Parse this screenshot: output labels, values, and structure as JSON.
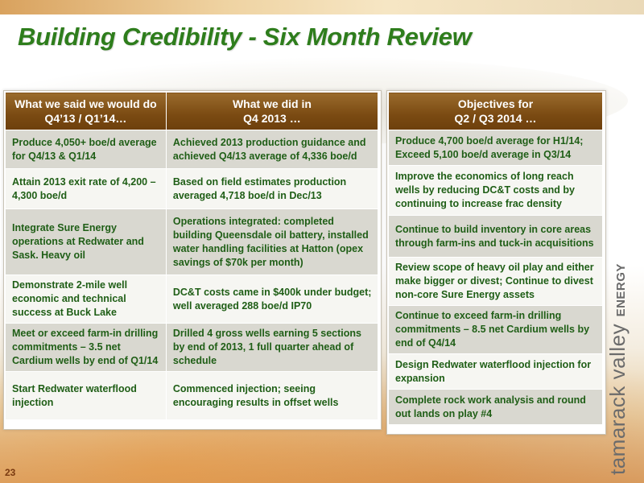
{
  "slide": {
    "title": "Building Credibility - Six Month Review",
    "page_number": "23",
    "brand": {
      "name": "tamarack valley",
      "suffix": "ENERGY"
    }
  },
  "left_table": {
    "headers": [
      {
        "line1": "What we said we would do",
        "line2": "Q4’13 / Q1’14…"
      },
      {
        "line1": "What we did in",
        "line2": "Q4 2013 …"
      }
    ],
    "rows": [
      {
        "said": "Produce 4,050+ boe/d average for Q4/13 & Q1/14",
        "did": "Achieved 2013 production guidance and achieved Q4/13 average of 4,336 boe/d"
      },
      {
        "said": "Attain 2013 exit rate of 4,200 – 4,300 boe/d",
        "did": "Based on field estimates production averaged 4,718 boe/d in Dec/13"
      },
      {
        "said": "Integrate Sure Energy operations at Redwater and Sask. Heavy oil",
        "did": "Operations integrated: completed building Queensdale oil battery, installed water handling facilities at Hatton (opex savings of $70k per month)"
      },
      {
        "said": "Demonstrate 2-mile well economic and technical success at Buck Lake",
        "did": "DC&T costs came in $400k under budget; well averaged 288 boe/d IP70"
      },
      {
        "said": "Meet or exceed farm-in drilling commitments – 3.5 net Cardium wells by end of Q1/14",
        "did": "Drilled 4 gross wells earning 5 sections by end of 2013, 1 full quarter ahead of schedule"
      },
      {
        "said": "Start Redwater waterflood injection",
        "did": "Commenced injection; seeing encouraging results in offset wells"
      }
    ]
  },
  "right_table": {
    "header": {
      "line1": "Objectives for",
      "line2": "Q2 / Q3 2014 …"
    },
    "rows": [
      "Produce 4,700 boe/d average for H1/14; Exceed 5,100 boe/d average in Q3/14",
      "Improve the economics of long reach wells by reducing DC&T costs and by continuing to increase frac density",
      "Continue to build inventory in core areas through farm-ins and tuck-in acquisitions",
      "Review scope of heavy oil play and either make bigger or divest; Continue to divest non-core Sure Energy assets",
      "Continue to exceed farm-in drilling commitments – 8.5 net Cardium wells by end of Q4/14",
      "Design Redwater waterflood injection for expansion",
      "Complete rock work analysis and round out lands on play #4"
    ]
  },
  "colors": {
    "title_green": "#2e7d1c",
    "header_brown": "#7a4a12",
    "body_green": "#1f5e16",
    "row_shade": "#d9d8d0"
  }
}
